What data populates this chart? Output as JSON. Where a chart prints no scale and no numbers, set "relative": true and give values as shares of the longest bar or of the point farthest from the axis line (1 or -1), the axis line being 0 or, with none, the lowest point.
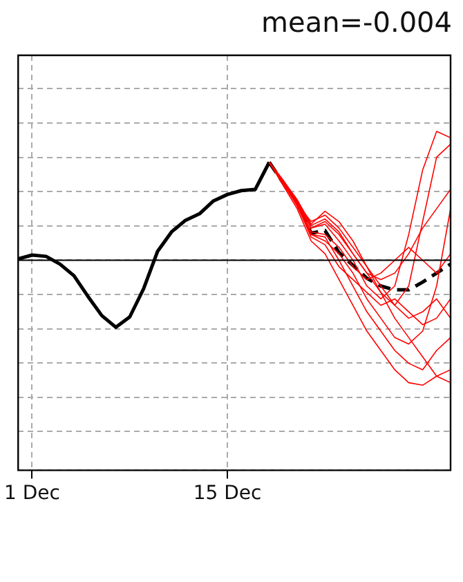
{
  "chart_data": {
    "type": "line",
    "title": "mean=-0.004",
    "relative": true,
    "grid": true,
    "legend": false,
    "marker": "none",
    "xlim": [
      "--11-30",
      "--12-31"
    ],
    "xticks": [
      {
        "value": "--12-01",
        "label": "1 Dec"
      },
      {
        "value": "--12-15",
        "label": "15 Dec"
      }
    ],
    "ref_lines": [
      {
        "axis": "y",
        "value": 0,
        "color": "#000000"
      }
    ],
    "series": [
      {
        "color": "#ff0000",
        "x": [
          "--12-18",
          "--12-19",
          "--12-20",
          "--12-21",
          "--12-22",
          "--12-23",
          "--12-24",
          "--12-25",
          "--12-26",
          "--12-27",
          "--12-28",
          "--12-29",
          "--12-30",
          "--12-31"
        ],
        "values": [
          0.76,
          0.62,
          0.45,
          0.25,
          0.28,
          0.15,
          0.0,
          -0.2,
          -0.3,
          -0.2,
          0.2,
          0.7,
          1.0,
          0.95
        ]
      },
      {
        "color": "#ff0000",
        "x": [
          "--12-18",
          "--12-19",
          "--12-20",
          "--12-21",
          "--12-22",
          "--12-23",
          "--12-24",
          "--12-25",
          "--12-26",
          "--12-27",
          "--12-28",
          "--12-29",
          "--12-30",
          "--12-31"
        ],
        "values": [
          0.76,
          0.6,
          0.44,
          0.3,
          0.35,
          0.25,
          0.1,
          -0.05,
          -0.2,
          -0.35,
          -0.2,
          0.3,
          0.8,
          0.9
        ]
      },
      {
        "color": "#ff0000",
        "x": [
          "--12-18",
          "--12-19",
          "--12-20",
          "--12-21",
          "--12-22",
          "--12-23",
          "--12-24",
          "--12-25",
          "--12-26",
          "--12-27",
          "--12-28",
          "--12-29",
          "--12-30",
          "--12-31"
        ],
        "values": [
          0.76,
          0.58,
          0.4,
          0.15,
          0.05,
          -0.15,
          -0.35,
          -0.55,
          -0.7,
          -0.85,
          -0.95,
          -0.97,
          -0.9,
          -0.85
        ]
      },
      {
        "color": "#ff0000",
        "x": [
          "--12-18",
          "--12-19",
          "--12-20",
          "--12-21",
          "--12-22",
          "--12-23",
          "--12-24",
          "--12-25",
          "--12-26",
          "--12-27",
          "--12-28",
          "--12-29",
          "--12-30",
          "--12-31"
        ],
        "values": [
          0.76,
          0.6,
          0.42,
          0.2,
          0.18,
          0.0,
          -0.2,
          -0.4,
          -0.55,
          -0.7,
          -0.8,
          -0.85,
          -0.7,
          -0.6
        ]
      },
      {
        "color": "#ff0000",
        "x": [
          "--12-18",
          "--12-19",
          "--12-20",
          "--12-21",
          "--12-22",
          "--12-23",
          "--12-24",
          "--12-25",
          "--12-26",
          "--12-27",
          "--12-28",
          "--12-29",
          "--12-30",
          "--12-31"
        ],
        "values": [
          0.76,
          0.62,
          0.47,
          0.28,
          0.38,
          0.3,
          0.15,
          -0.05,
          -0.25,
          -0.45,
          -0.6,
          -0.75,
          -0.9,
          -0.95
        ]
      },
      {
        "color": "#ff0000",
        "x": [
          "--12-18",
          "--12-19",
          "--12-20",
          "--12-21",
          "--12-22",
          "--12-23",
          "--12-24",
          "--12-25",
          "--12-26",
          "--12-27",
          "--12-28",
          "--12-29",
          "--12-30",
          "--12-31"
        ],
        "values": [
          0.76,
          0.61,
          0.46,
          0.25,
          0.3,
          0.2,
          0.05,
          -0.1,
          -0.15,
          -0.1,
          0.05,
          0.25,
          0.4,
          0.55
        ]
      },
      {
        "color": "#ff0000",
        "x": [
          "--12-18",
          "--12-19",
          "--12-20",
          "--12-21",
          "--12-22",
          "--12-23",
          "--12-24",
          "--12-25",
          "--12-26",
          "--12-27",
          "--12-28",
          "--12-29",
          "--12-30",
          "--12-31"
        ],
        "values": [
          0.76,
          0.59,
          0.43,
          0.18,
          0.12,
          -0.05,
          -0.15,
          -0.25,
          -0.35,
          -0.3,
          -0.4,
          -0.5,
          -0.45,
          -0.3
        ]
      },
      {
        "color": "#ff0000",
        "x": [
          "--12-18",
          "--12-19",
          "--12-20",
          "--12-21",
          "--12-22",
          "--12-23",
          "--12-24",
          "--12-25",
          "--12-26",
          "--12-27",
          "--12-28",
          "--12-29",
          "--12-30",
          "--12-31"
        ],
        "values": [
          0.76,
          0.6,
          0.45,
          0.22,
          0.2,
          0.1,
          -0.05,
          -0.15,
          -0.1,
          0.0,
          0.1,
          0.0,
          -0.1,
          0.05
        ]
      },
      {
        "color": "#ff0000",
        "x": [
          "--12-18",
          "--12-19",
          "--12-20",
          "--12-21",
          "--12-22",
          "--12-23",
          "--12-24",
          "--12-25",
          "--12-26",
          "--12-27",
          "--12-28",
          "--12-29",
          "--12-30",
          "--12-31"
        ],
        "values": [
          0.76,
          0.62,
          0.46,
          0.27,
          0.32,
          0.22,
          0.05,
          -0.1,
          -0.25,
          -0.35,
          -0.45,
          -0.4,
          -0.3,
          -0.45
        ]
      },
      {
        "color": "#ff0000",
        "x": [
          "--12-18",
          "--12-19",
          "--12-20",
          "--12-21",
          "--12-22",
          "--12-23",
          "--12-24",
          "--12-25",
          "--12-26",
          "--12-27",
          "--12-28",
          "--12-29",
          "--12-30",
          "--12-31"
        ],
        "values": [
          0.76,
          0.6,
          0.44,
          0.2,
          0.15,
          0.05,
          -0.1,
          -0.3,
          -0.45,
          -0.6,
          -0.65,
          -0.55,
          -0.2,
          0.4
        ]
      },
      {
        "color": "#000000",
        "x": [
          "--11-30",
          "--12-01",
          "--12-02",
          "--12-03",
          "--12-04",
          "--12-05",
          "--12-06",
          "--12-07",
          "--12-08",
          "--12-09",
          "--12-10",
          "--12-11",
          "--12-12",
          "--12-13",
          "--12-14",
          "--12-15",
          "--12-16",
          "--12-17",
          "--12-18"
        ],
        "values": [
          0.01,
          0.04,
          0.03,
          -0.03,
          -0.12,
          -0.28,
          -0.43,
          -0.52,
          -0.44,
          -0.22,
          0.07,
          0.22,
          0.31,
          0.36,
          0.46,
          0.51,
          0.54,
          0.55,
          0.76
        ]
      },
      {
        "color": "#000000",
        "line_style": "dashed",
        "x": [
          "--12-18",
          "--12-19",
          "--12-20",
          "--12-21",
          "--12-22",
          "--12-23",
          "--12-24",
          "--12-25",
          "--12-26",
          "--12-27",
          "--12-28",
          "--12-29",
          "--12-30",
          "--12-31"
        ],
        "values": [
          0.76,
          0.6,
          0.45,
          0.21,
          0.23,
          0.06,
          -0.04,
          -0.14,
          -0.2,
          -0.23,
          -0.23,
          -0.17,
          -0.1,
          -0.03
        ]
      }
    ]
  }
}
